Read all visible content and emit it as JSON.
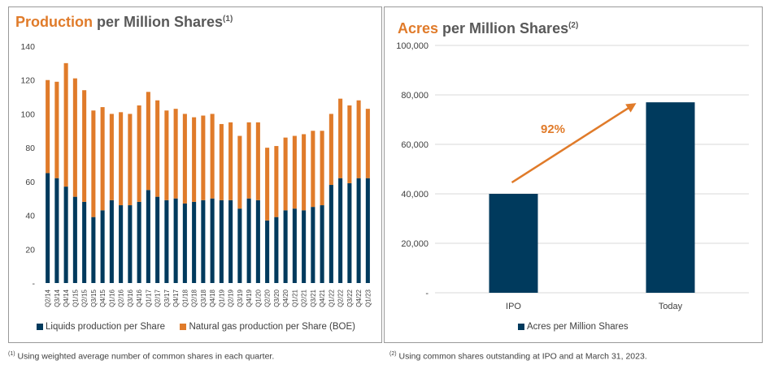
{
  "colors": {
    "liquids": "#003a5d",
    "gas": "#e07b2a",
    "acres": "#003a5d",
    "arrow": "#e07b2a",
    "accent": "#e07b2a"
  },
  "left": {
    "title_accent": "Production",
    "title_rest": " per Million Shares",
    "title_sup": "(1)",
    "legend_liquids": "Liquids production per Share",
    "legend_gas": "Natural gas production per Share (BOE)"
  },
  "right": {
    "title_accent": "Acres",
    "title_rest": " per Million Shares",
    "title_sup": "(2)",
    "legend_acres": "Acres per Million Shares",
    "annotation": "92%"
  },
  "footnotes": {
    "fn1_sup": "(1)",
    "fn1_text": " Using weighted average number of common shares in each quarter.",
    "fn2_sup": "(2)",
    "fn2_text": " Using common shares outstanding at IPO and at March 31, 2023."
  },
  "chart_data": [
    {
      "type": "bar",
      "stacked": true,
      "title": "Production per Million Shares",
      "categories": [
        "Q2/14",
        "Q3/14",
        "Q4/14",
        "Q1/15",
        "Q2/15",
        "Q3/15",
        "Q4/15",
        "Q1/16",
        "Q2/16",
        "Q3/16",
        "Q4/16",
        "Q1/17",
        "Q2/17",
        "Q3/17",
        "Q4/17",
        "Q1/18",
        "Q2/18",
        "Q3/18",
        "Q4/18",
        "Q1/19",
        "Q2/19",
        "Q3/19",
        "Q4/19",
        "Q1/20",
        "Q2/20",
        "Q3/20",
        "Q4/20",
        "Q1/21",
        "Q2/21",
        "Q3/21",
        "Q4/21",
        "Q1/22",
        "Q2/22",
        "Q3/22",
        "Q4/22",
        "Q1/23"
      ],
      "series": [
        {
          "name": "Liquids production per Share",
          "values": [
            65,
            62,
            57,
            51,
            48,
            39,
            43,
            49,
            46,
            46,
            48,
            55,
            51,
            49,
            50,
            47,
            48,
            49,
            50,
            49,
            49,
            44,
            50,
            49,
            37,
            39,
            43,
            44,
            43,
            45,
            46,
            58,
            62,
            59,
            62,
            62
          ]
        },
        {
          "name": "Natural gas production per Share (BOE)",
          "values": [
            55,
            57,
            73,
            70,
            66,
            63,
            61,
            51,
            55,
            54,
            57,
            58,
            57,
            53,
            53,
            53,
            50,
            50,
            50,
            45,
            46,
            43,
            45,
            46,
            43,
            42,
            43,
            43,
            45,
            45,
            44,
            42,
            47,
            46,
            46,
            41
          ]
        }
      ],
      "yticks": [
        "-",
        "20",
        "40",
        "60",
        "80",
        "100",
        "120",
        "140"
      ],
      "ylim": [
        0,
        140
      ]
    },
    {
      "type": "bar",
      "title": "Acres per Million Shares",
      "categories": [
        "IPO",
        "Today"
      ],
      "series": [
        {
          "name": "Acres per Million Shares",
          "values": [
            40000,
            77000
          ]
        }
      ],
      "yticks": [
        "-",
        "20,000",
        "40,000",
        "60,000",
        "80,000",
        "100,000"
      ],
      "ylim": [
        0,
        100000
      ],
      "annotation": "92%"
    }
  ]
}
